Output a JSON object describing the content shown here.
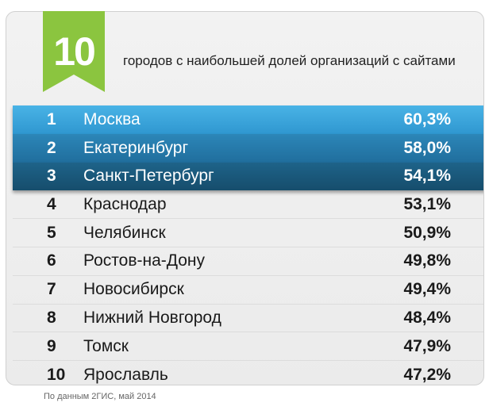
{
  "badge": {
    "number": "10",
    "color": "#8bc53f"
  },
  "headline": "городов с наибольшей долей организаций с сайтами",
  "source": "По данным 2ГИС, май 2014",
  "chart_data": {
    "type": "table",
    "columns": [
      "rank",
      "city",
      "share"
    ],
    "rows": [
      {
        "rank": "1",
        "city": "Москва",
        "value": "60,3%"
      },
      {
        "rank": "2",
        "city": "Екатеринбург",
        "value": "58,0%"
      },
      {
        "rank": "3",
        "city": "Санкт-Петербург",
        "value": "54,1%"
      },
      {
        "rank": "4",
        "city": "Краснодар",
        "value": "53,1%"
      },
      {
        "rank": "5",
        "city": "Челябинск",
        "value": "50,9%"
      },
      {
        "rank": "6",
        "city": "Ростов-на-Дону",
        "value": "49,8%"
      },
      {
        "rank": "7",
        "city": "Новосибирск",
        "value": "49,4%"
      },
      {
        "rank": "8",
        "city": "Нижний Новгород",
        "value": "48,4%"
      },
      {
        "rank": "9",
        "city": "Томск",
        "value": "47,9%"
      },
      {
        "rank": "10",
        "city": "Ярославль",
        "value": "47,2%"
      }
    ],
    "highlight_colors": [
      "#3aa6de",
      "#2679aa",
      "#1a597c"
    ]
  }
}
